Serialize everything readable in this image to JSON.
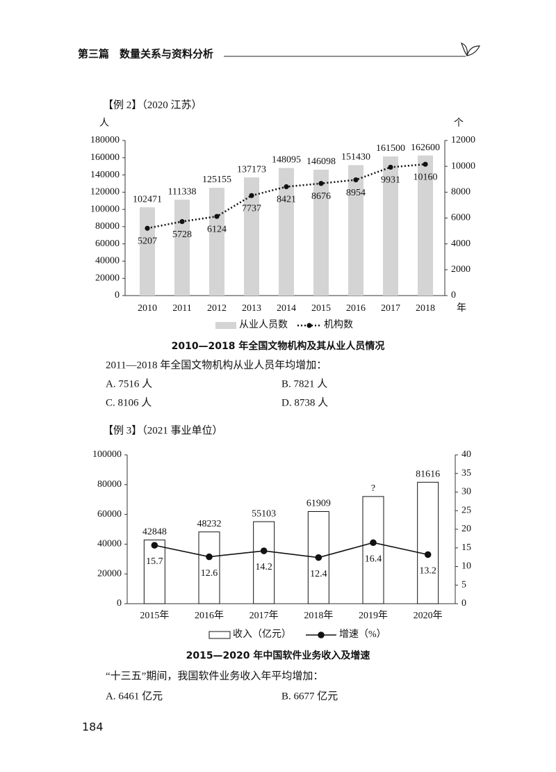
{
  "header": {
    "title": "第三篇　数量关系与资料分析"
  },
  "examples": [
    {
      "label": "【例 2】（2020 江苏）",
      "question": "2011—2018 年全国文物机构从业人员年均增加：",
      "options": [
        "A. 7516 人",
        "B. 7821 人",
        "C. 8106 人",
        "D. 8738 人"
      ]
    },
    {
      "label": "【例 3】（2021 事业单位）",
      "question": "“十三五”期间，我国软件业务收入年平均增加：",
      "options": [
        "A. 6461 亿元",
        "B. 6677 亿元"
      ]
    }
  ],
  "chart_data": [
    {
      "type": "bar_line",
      "title": "2010—2018 年全国文物机构及其从业人员情况",
      "y_unit": "人",
      "y2_unit": "个",
      "x_unit": "年",
      "categories": [
        "2010",
        "2011",
        "2012",
        "2013",
        "2014",
        "2015",
        "2016",
        "2017",
        "2018"
      ],
      "series": [
        {
          "name": "从业人员数",
          "type": "bar",
          "color": "#d4d4d4",
          "values": [
            102471,
            111338,
            125155,
            137173,
            148095,
            146098,
            151430,
            161500,
            162600
          ]
        },
        {
          "name": "机构数",
          "type": "line",
          "axis": "y2",
          "color": "#111111",
          "line_style": "dotted",
          "values": [
            5207,
            5728,
            6124,
            7737,
            8421,
            8676,
            8954,
            9931,
            10160
          ]
        }
      ],
      "ylim": [
        0,
        180000
      ],
      "yticks": [
        0,
        20000,
        40000,
        60000,
        80000,
        100000,
        120000,
        140000,
        160000,
        180000
      ],
      "y2lim": [
        0,
        12000
      ],
      "y2ticks": [
        0,
        2000,
        4000,
        6000,
        8000,
        10000,
        12000
      ]
    },
    {
      "type": "bar_line",
      "title": "2015—2020 年中国软件业务收入及增速",
      "categories": [
        "2015年",
        "2016年",
        "2017年",
        "2018年",
        "2019年",
        "2020年"
      ],
      "series": [
        {
          "name": "收入（亿元）",
          "type": "bar",
          "color": "#111111",
          "hollow": true,
          "values": [
            42848,
            48232,
            55103,
            61909,
            72000,
            81616
          ],
          "value_labels": [
            "42848",
            "48232",
            "55103",
            "61909",
            "?",
            "81616"
          ]
        },
        {
          "name": "增速（%）",
          "type": "line",
          "axis": "y2",
          "color": "#111111",
          "line_style": "solid",
          "values": [
            15.7,
            12.6,
            14.2,
            12.4,
            16.4,
            13.2
          ]
        }
      ],
      "ylim": [
        0,
        100000
      ],
      "yticks": [
        0,
        20000,
        40000,
        60000,
        80000,
        100000
      ],
      "y2lim": [
        0,
        40
      ],
      "y2ticks": [
        0,
        5,
        10,
        15,
        20,
        25,
        30,
        35,
        40
      ]
    }
  ],
  "page_number": "184"
}
